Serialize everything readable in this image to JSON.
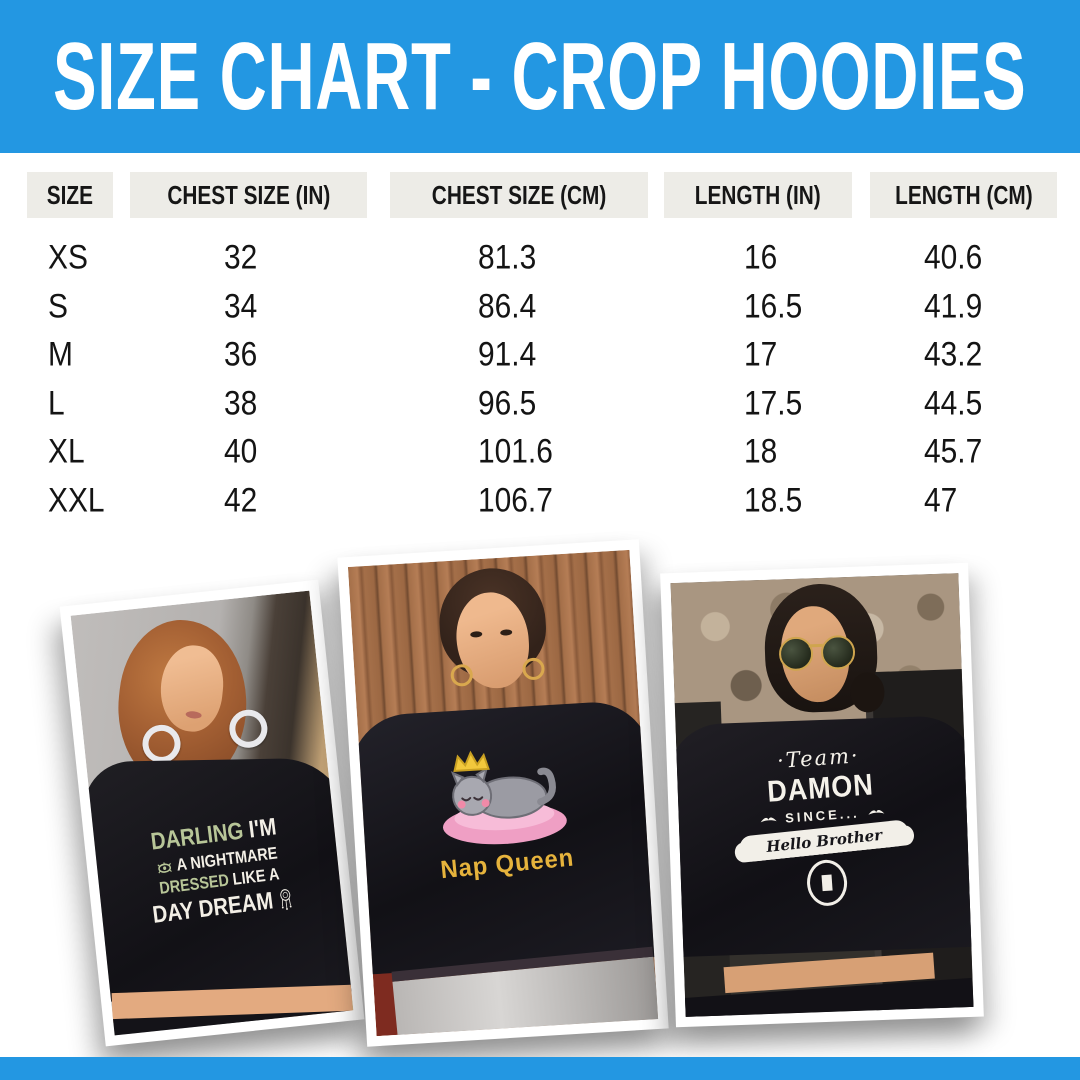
{
  "page": {
    "background": "#ffffff",
    "accent_blue": "#2397E2",
    "header_cell_gray": "#EDECE7"
  },
  "header": {
    "title": "SIZE CHART - CROP HOODIES"
  },
  "table": {
    "columns": [
      "SIZE",
      "CHEST SIZE (IN)",
      "CHEST SIZE (CM)",
      "LENGTH (IN)",
      "LENGTH (CM)"
    ],
    "row_keys": [
      "size",
      "chest_in",
      "chest_cm",
      "length_in",
      "length_cm"
    ],
    "rows": [
      {
        "size": "XS",
        "chest_in": "32",
        "chest_cm": "81.3",
        "length_in": "16",
        "length_cm": "40.6"
      },
      {
        "size": "S",
        "chest_in": "34",
        "chest_cm": "86.4",
        "length_in": "16.5",
        "length_cm": "41.9"
      },
      {
        "size": "M",
        "chest_in": "36",
        "chest_cm": "91.4",
        "length_in": "17",
        "length_cm": "43.2"
      },
      {
        "size": "L",
        "chest_in": "38",
        "chest_cm": "96.5",
        "length_in": "17.5",
        "length_cm": "44.5"
      },
      {
        "size": "XL",
        "chest_in": "40",
        "chest_cm": "101.6",
        "length_in": "18",
        "length_cm": "45.7"
      },
      {
        "size": "XXL",
        "chest_in": "42",
        "chest_cm": "106.7",
        "length_in": "18.5",
        "length_cm": "47"
      }
    ]
  },
  "chart_data": {
    "type": "table",
    "title": "SIZE CHART - CROP HOODIES",
    "columns": [
      "SIZE",
      "CHEST SIZE (IN)",
      "CHEST SIZE (CM)",
      "LENGTH (IN)",
      "LENGTH (CM)"
    ],
    "rows": [
      [
        "XS",
        32,
        81.3,
        16,
        40.6
      ],
      [
        "S",
        34,
        86.4,
        16.5,
        41.9
      ],
      [
        "M",
        36,
        91.4,
        17,
        43.2
      ],
      [
        "L",
        38,
        96.5,
        17.5,
        44.5
      ],
      [
        "XL",
        40,
        101.6,
        18,
        45.7
      ],
      [
        "XXL",
        42,
        106.7,
        18.5,
        47
      ]
    ]
  },
  "photos": {
    "darling": {
      "line1_green": "DARLING",
      "line1_white": "I'M",
      "line2": "A NIGHTMARE",
      "line3_green": "DRESSED",
      "line3_white": "LIKE A",
      "line4": "DAY DREAM",
      "green": "#b8c698",
      "white": "#f3efe6"
    },
    "nap_queen": {
      "caption": "Nap Queen",
      "caption_color": "#e6b33c"
    },
    "team_damon": {
      "line1": "Team",
      "line2": "DAMON",
      "line3": "SINCE...",
      "banner": "Hello Brother"
    }
  }
}
